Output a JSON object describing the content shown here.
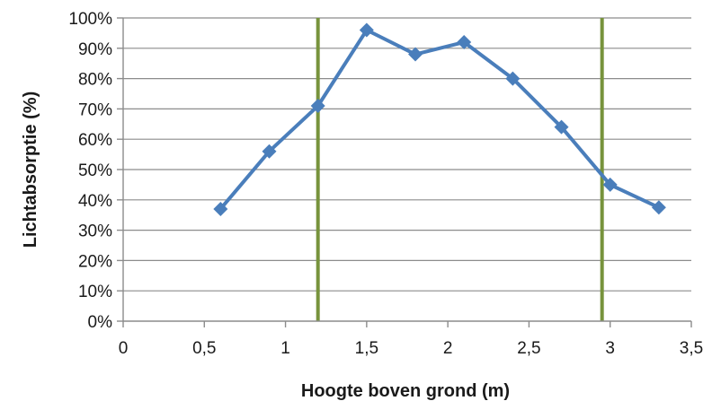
{
  "chart_data": {
    "type": "line",
    "title": "",
    "xlabel": "Hoogte boven grond (m)",
    "ylabel": "Lichtabsorptie (%)",
    "xlim": [
      0,
      3.5
    ],
    "ylim": [
      0,
      100
    ],
    "x_ticks": [
      0,
      0.5,
      1,
      1.5,
      2,
      2.5,
      3,
      3.5
    ],
    "x_tick_labels": [
      "0",
      "0,5",
      "1",
      "1,5",
      "2",
      "2,5",
      "3",
      "3,5"
    ],
    "y_ticks": [
      0,
      10,
      20,
      30,
      40,
      50,
      60,
      70,
      80,
      90,
      100
    ],
    "y_tick_labels": [
      "0%",
      "10%",
      "20%",
      "30%",
      "40%",
      "50%",
      "60%",
      "70%",
      "80%",
      "90%",
      "100%"
    ],
    "grid": "horizontal",
    "legend": "none",
    "series": [
      {
        "x": [
          0.6,
          0.9,
          1.2,
          1.5,
          1.8,
          2.1,
          2.4,
          2.7,
          3.0,
          3.3
        ],
        "y": [
          37,
          56,
          71,
          96,
          88,
          92,
          80,
          64,
          45,
          37.5
        ],
        "color": "#4a7ebb",
        "marker": "diamond"
      }
    ],
    "reference_lines": [
      {
        "x": 1.2,
        "color": "#77933c"
      },
      {
        "x": 2.95,
        "color": "#77933c"
      }
    ]
  }
}
